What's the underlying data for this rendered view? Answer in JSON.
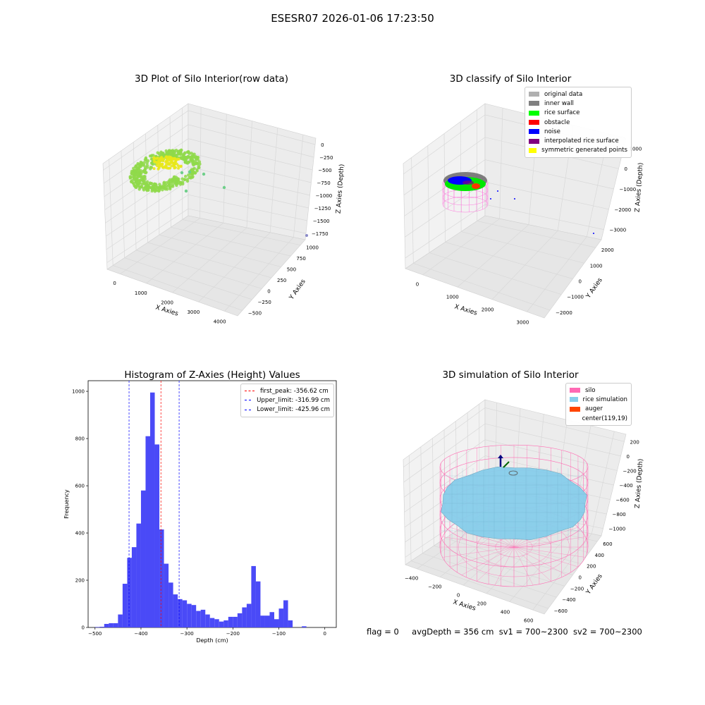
{
  "suptitle": "ESESR07 2026-01-06 17:23:50",
  "footer": {
    "flag": "flag = 0",
    "avg_depth": "avgDepth = 356 cm",
    "sv1": "sv1 = 700~2300",
    "sv2": "sv2 = 700~2300"
  },
  "chart_data": [
    {
      "id": "raw",
      "type": "scatter",
      "projection": "3d",
      "title": "3D Plot of Silo Interior(row data)",
      "xlabel": "X Axies",
      "ylabel": "Y Axies",
      "zlabel": "Z Axies (Depth)",
      "x_ticks": [
        "0",
        "1000",
        "2000",
        "3000",
        "4000"
      ],
      "y_ticks": [
        "−500",
        "−250",
        "0",
        "250",
        "500",
        "750",
        "1000"
      ],
      "z_ticks": [
        "0",
        "−250",
        "−500",
        "−750",
        "−1000",
        "−1250",
        "−1500",
        "−1750"
      ],
      "colors": {
        "main": "#8fd94a",
        "high": "#e8e81a",
        "outlier": "#6fcf8a",
        "far": "#8a8ac8"
      }
    },
    {
      "id": "classify",
      "type": "scatter",
      "projection": "3d",
      "title": "3D classify of Silo Interior",
      "xlabel": "X Axies",
      "ylabel": "Y Axies",
      "zlabel": "Z Axies (Depth)",
      "x_ticks": [
        "0",
        "1000",
        "2000",
        "3000"
      ],
      "y_ticks": [
        "−2000",
        "−1000",
        "0",
        "1000",
        "2000"
      ],
      "z_ticks": [
        "1000",
        "0",
        "−1000",
        "−2000",
        "−3000"
      ],
      "legend": [
        {
          "label": "original data",
          "color": "#b0b0b0"
        },
        {
          "label": "inner wall",
          "color": "#808080"
        },
        {
          "label": "rice surface",
          "color": "#00ff00"
        },
        {
          "label": "obstacle",
          "color": "#ff0000"
        },
        {
          "label": "noise",
          "color": "#0000ff"
        },
        {
          "label": "interpolated rice surface",
          "color": "#800080"
        },
        {
          "label": "symmetric generated points",
          "color": "#ffff00"
        }
      ]
    },
    {
      "id": "histogram",
      "type": "bar",
      "title": "Histogram of Z-Axies (Height) Values",
      "xlabel": "Depth (cm)",
      "ylabel": "Frequency",
      "xlim": [
        -515,
        25
      ],
      "ylim": [
        0,
        1045
      ],
      "x_ticks": [
        -500,
        -400,
        -300,
        -200,
        -100,
        0
      ],
      "x_tick_labels": [
        "−500",
        "−400",
        "−300",
        "−200",
        "−100",
        "0"
      ],
      "y_ticks": [
        0,
        200,
        400,
        600,
        800,
        1000
      ],
      "bin_start": -500,
      "bin_width": 10,
      "values": [
        2,
        3,
        15,
        18,
        18,
        55,
        185,
        295,
        340,
        440,
        580,
        810,
        995,
        775,
        415,
        270,
        190,
        140,
        120,
        115,
        100,
        95,
        70,
        75,
        55,
        40,
        35,
        25,
        30,
        45,
        45,
        60,
        85,
        100,
        260,
        195,
        50,
        50,
        65,
        35,
        80,
        115,
        30,
        0,
        0,
        5
      ],
      "bar_color": "#4a4af7",
      "lines": [
        {
          "label": "first_peak: -356.62 cm",
          "x": -356.62,
          "color": "#ff0000"
        },
        {
          "label": "Upper_limit: -316.99 cm",
          "x": -316.99,
          "color": "#0000ff"
        },
        {
          "label": "Lower_limit: -425.96 cm",
          "x": -425.96,
          "color": "#0000ff"
        }
      ]
    },
    {
      "id": "simulation",
      "type": "surface",
      "projection": "3d",
      "title": "3D simulation of Silo Interior",
      "xlabel": "X Axies",
      "ylabel": "Y Axies",
      "zlabel": "Z Axies (Depth)",
      "x_ticks": [
        "−400",
        "−200",
        "0",
        "200",
        "400",
        "600"
      ],
      "y_ticks": [
        "−600",
        "−400",
        "−200",
        "0",
        "200",
        "400",
        "600"
      ],
      "z_ticks": [
        "200",
        "0",
        "−200",
        "−400",
        "−600",
        "−800",
        "−1000"
      ],
      "legend": [
        {
          "label": "silo",
          "color": "#ff69b4"
        },
        {
          "label": "rice simulation",
          "color": "#87ceeb"
        },
        {
          "label": "auger",
          "color": "#ff4500"
        },
        {
          "label": "center(119,19)",
          "color": null
        }
      ]
    }
  ]
}
